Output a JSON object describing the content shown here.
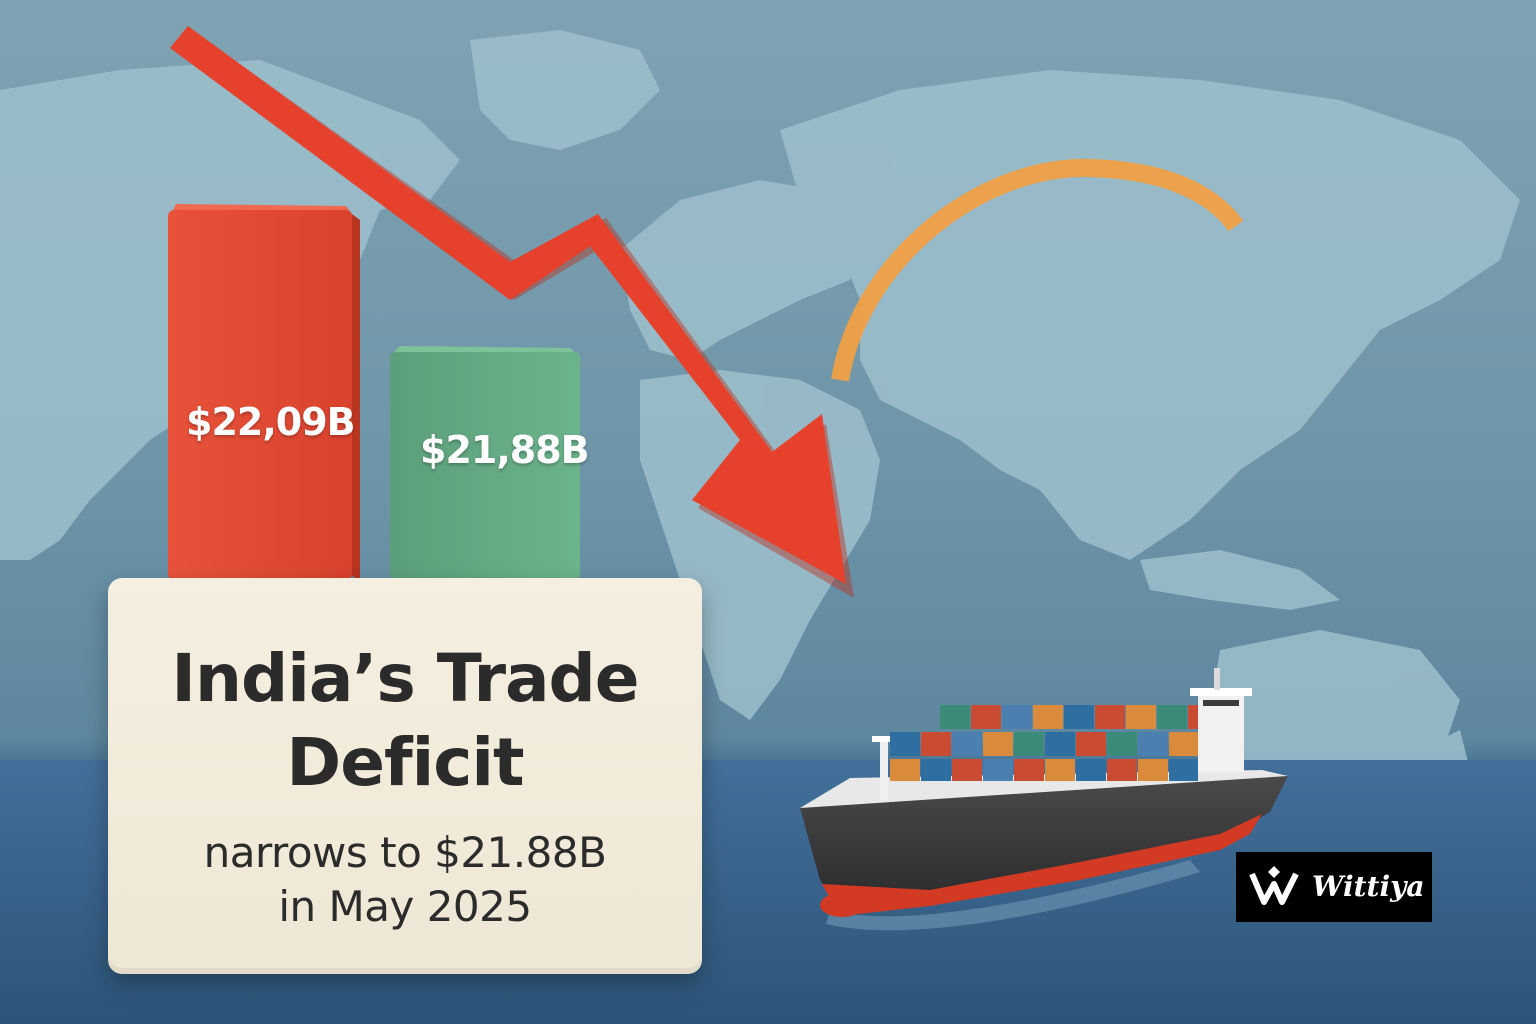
{
  "bars": {
    "previous_label": "$22,09B",
    "current_label": "$21,88B"
  },
  "headline": {
    "title_line1": "India’s Trade",
    "title_line2": "Deficit",
    "subtitle_line1": "narrows to $21.88B",
    "subtitle_line2": "in May 2025"
  },
  "logo": {
    "name": "Wittiya"
  },
  "colors": {
    "red_bar": "#e04a33",
    "green_bar": "#5fa57e",
    "arrow": "#e5412c",
    "arc": "#f0a046",
    "map_land": "#9fc0cc",
    "sea": "#2f5a7e",
    "card": "#f2ebdb",
    "ship_hull": "#3a3a3a",
    "ship_keel": "#d23a24"
  }
}
